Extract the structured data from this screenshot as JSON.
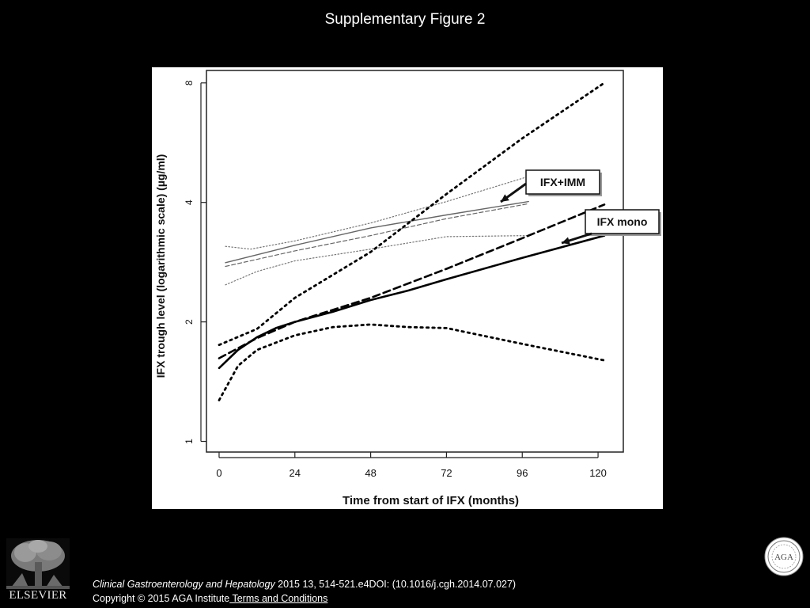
{
  "slide": {
    "title": "Supplementary Figure 2",
    "citation_journal": "Clinical Gastroenterology and Hepatology",
    "citation_rest": " 2015 13, 514-521.e4DOI: (10.1016/j.cgh.2014.07.027)",
    "copyright": "Copyright © 2015 AGA Institute",
    "terms_link": " Terms and Conditions",
    "publisher_logo_text": "ELSEVIER",
    "seal_text": "AGA"
  },
  "chart_data": {
    "type": "line",
    "title": "",
    "xlabel": "Time from start of IFX (months)",
    "ylabel": "IFX trough level (logarithmic scale) (µg/ml)",
    "xlim": [
      -4,
      128
    ],
    "ylim": [
      0.94,
      8.6
    ],
    "y_scale": "log",
    "x_ticks": [
      0,
      24,
      48,
      72,
      96,
      120
    ],
    "x_tick_labels": [
      "0",
      "24",
      "48",
      "72",
      "96",
      "120"
    ],
    "y_ticks": [
      1,
      2,
      4,
      8
    ],
    "y_tick_labels": [
      "1",
      "2",
      "4",
      "8"
    ],
    "grid": false,
    "annotations": [
      {
        "text": "IFX+IMM",
        "points_to_series": "IFX+IMM fit"
      },
      {
        "text": "IFX mono",
        "points_to_series": "IFX mono fit"
      }
    ],
    "series": [
      {
        "group": "IFX+IMM",
        "style": "thin-solid",
        "color": "#666666",
        "x": [
          2,
          24,
          48,
          72,
          98
        ],
        "y": [
          2.82,
          3.12,
          3.45,
          3.72,
          4.02
        ]
      },
      {
        "group": "IFX+IMM",
        "style": "thin-dashed",
        "color": "#666666",
        "x": [
          2,
          24,
          48,
          72,
          98
        ],
        "y": [
          2.76,
          3.02,
          3.3,
          3.64,
          3.97
        ]
      },
      {
        "group": "IFX+IMM",
        "style": "thin-dotted",
        "color": "#777777",
        "x": [
          2,
          10,
          24,
          48,
          72,
          98
        ],
        "y": [
          3.1,
          3.05,
          3.2,
          3.55,
          4.02,
          4.65
        ]
      },
      {
        "group": "IFX+IMM",
        "style": "thin-dotted",
        "color": "#777777",
        "x": [
          2,
          12,
          24,
          48,
          72,
          98
        ],
        "y": [
          2.48,
          2.68,
          2.85,
          3.05,
          3.28,
          3.3
        ]
      },
      {
        "group": "IFX mono",
        "style": "thick-solid",
        "color": "#000000",
        "x": [
          0,
          6,
          12,
          18,
          24,
          36,
          48,
          60,
          72,
          96,
          122
        ],
        "y": [
          1.53,
          1.7,
          1.83,
          1.93,
          2.0,
          2.12,
          2.27,
          2.4,
          2.56,
          2.9,
          3.3
        ]
      },
      {
        "group": "IFX mono",
        "style": "thick-dashed",
        "color": "#000000",
        "x": [
          0,
          12,
          24,
          48,
          72,
          96,
          122
        ],
        "y": [
          1.62,
          1.82,
          2.0,
          2.3,
          2.72,
          3.25,
          3.95
        ]
      },
      {
        "group": "IFX mono",
        "style": "thick-dotted",
        "color": "#000000",
        "x": [
          0,
          6,
          12,
          24,
          36,
          48,
          60,
          72,
          96,
          122
        ],
        "y": [
          1.27,
          1.55,
          1.7,
          1.85,
          1.94,
          1.97,
          1.94,
          1.93,
          1.76,
          1.6
        ]
      },
      {
        "group": "IFX mono",
        "style": "thick-dotted",
        "color": "#000000",
        "x": [
          0,
          12,
          24,
          48,
          72,
          96,
          122
        ],
        "y": [
          1.75,
          1.92,
          2.3,
          3.0,
          4.2,
          5.8,
          8.0
        ]
      }
    ]
  }
}
